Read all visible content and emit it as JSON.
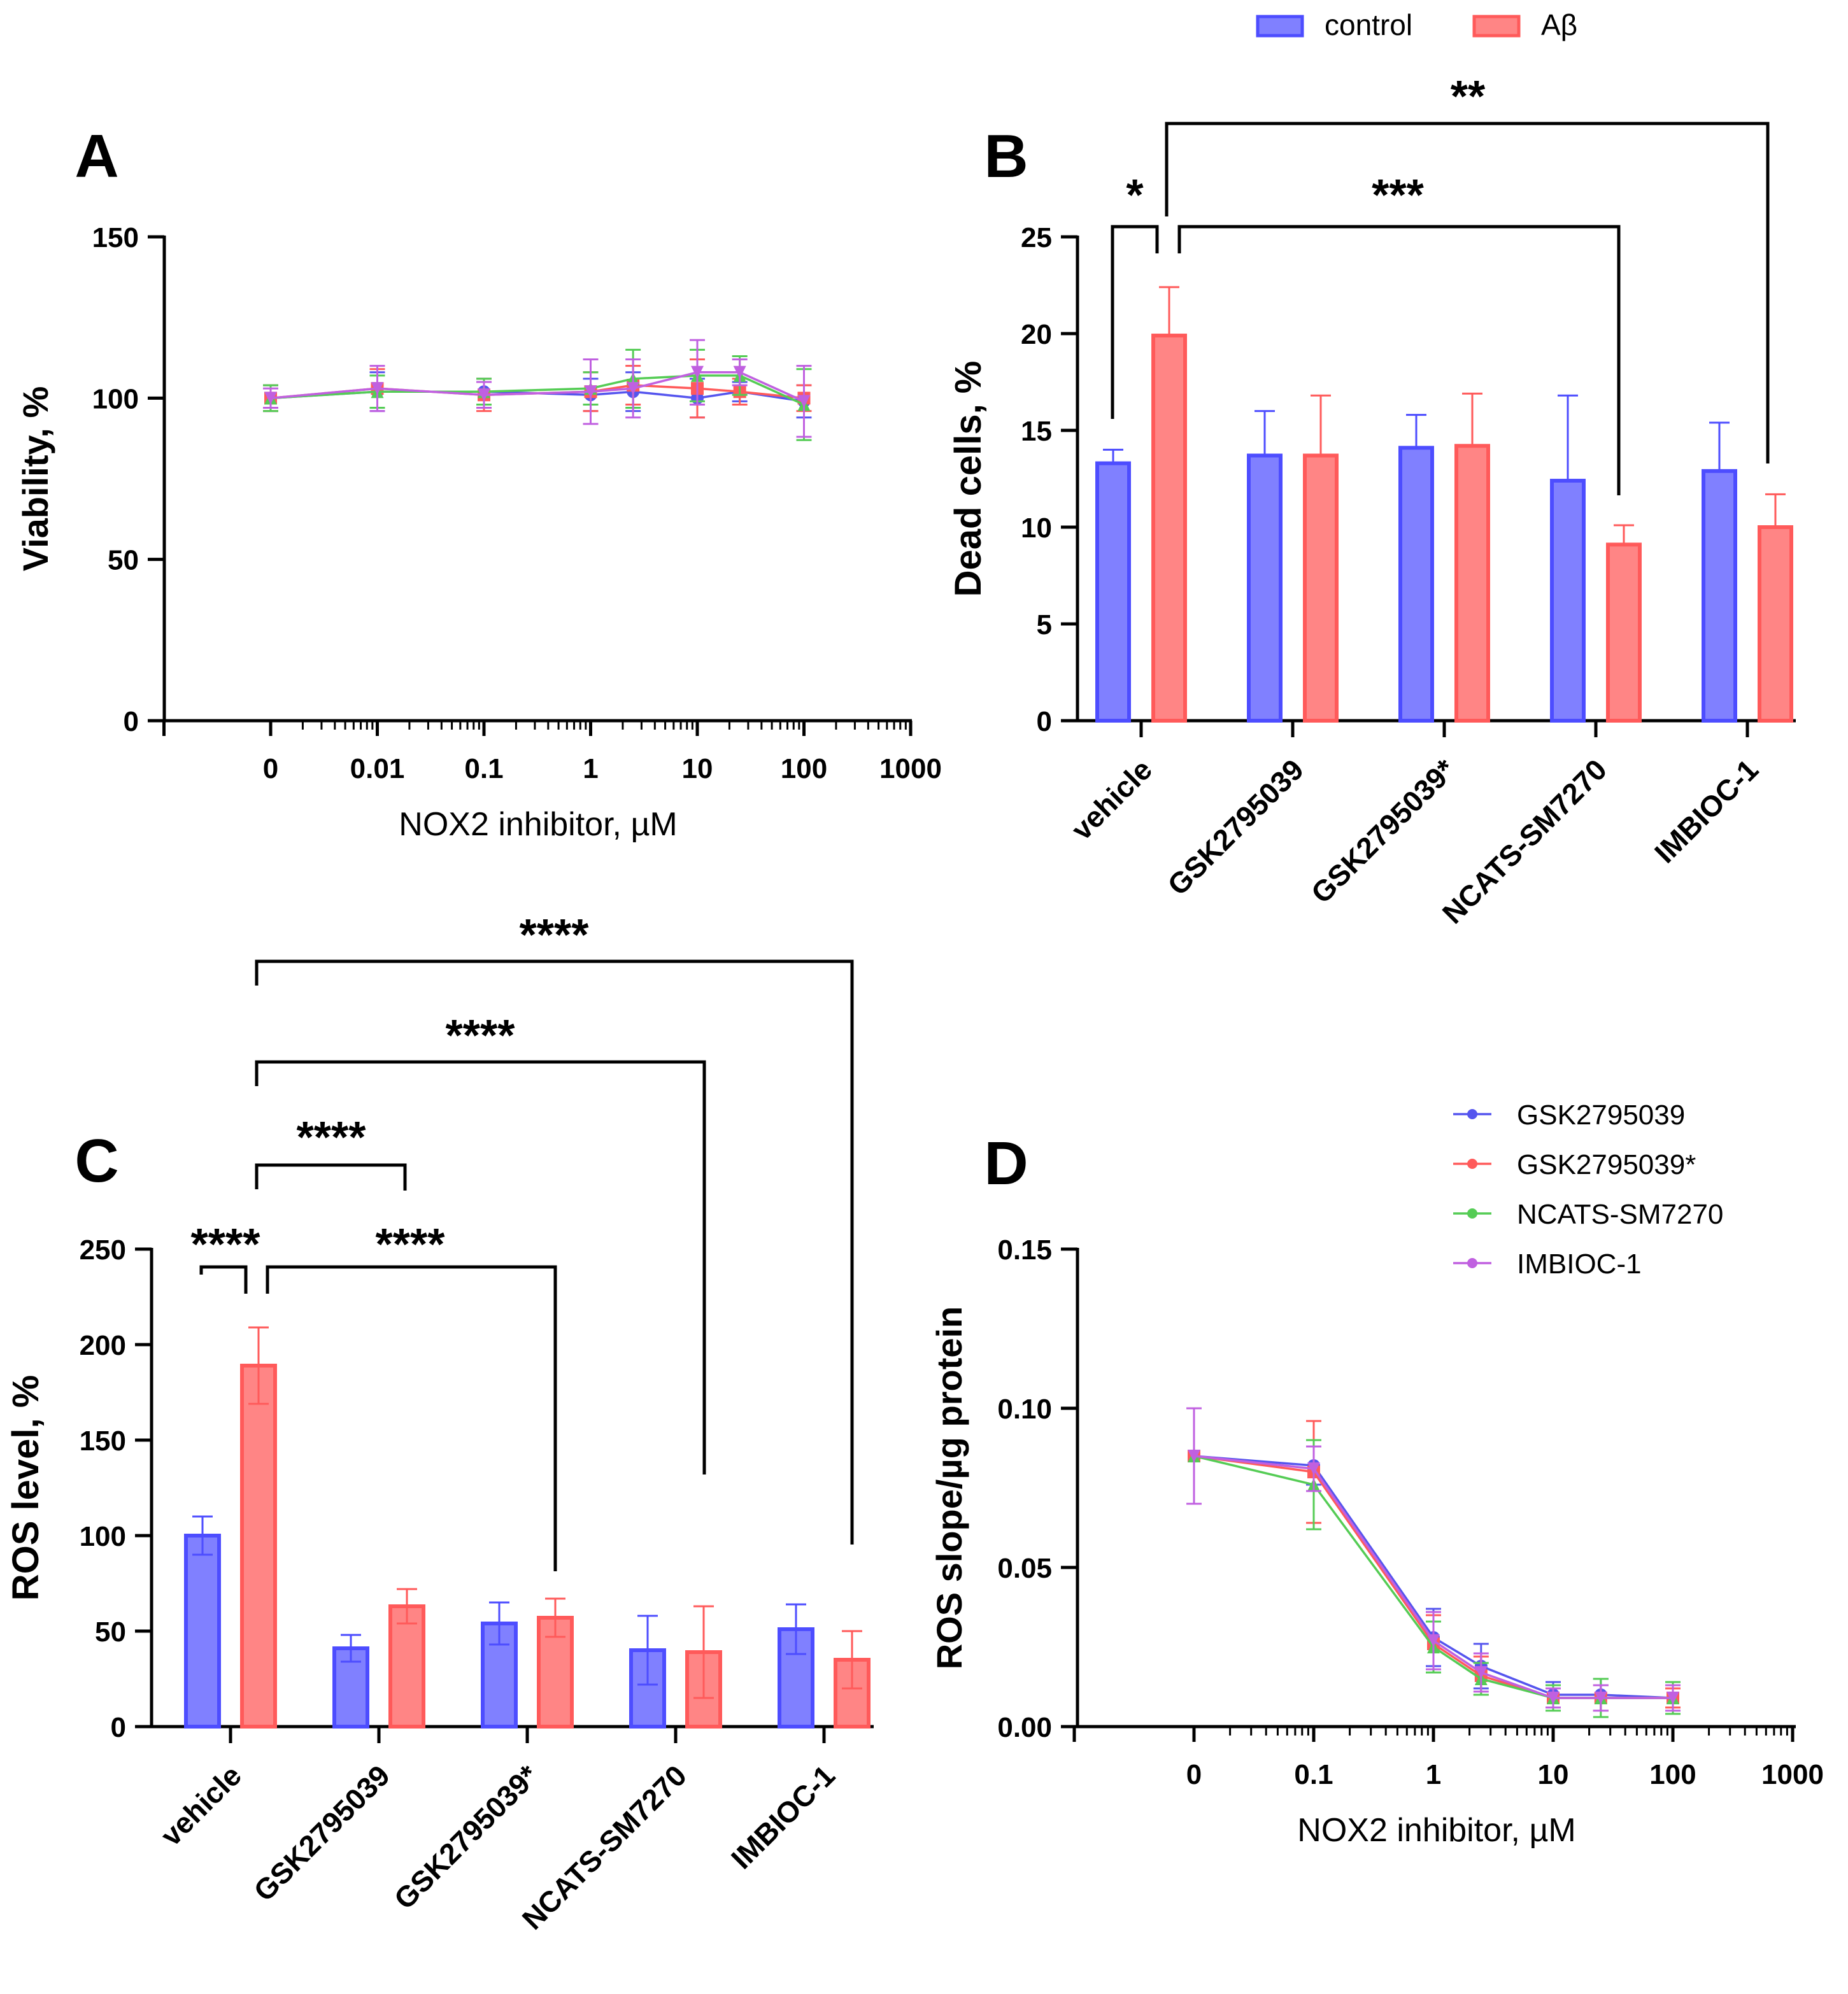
{
  "colors": {
    "control_fill": "#8080ff",
    "control_stroke": "#4d4dff",
    "abeta_fill": "#ff8585",
    "abeta_stroke": "#ff5a5a",
    "series": [
      "#5555ee",
      "#ff5a5a",
      "#55cc55",
      "#c060e0"
    ]
  },
  "legend_top": {
    "items": [
      {
        "label": "control",
        "color": "control"
      },
      {
        "label": "Aβ",
        "color": "abeta"
      }
    ]
  },
  "chart_data": [
    {
      "panel": "A",
      "type": "line",
      "xlabel": "NOX2 inhibitor, µM",
      "ylabel": "Viability, %",
      "ylim": [
        0,
        150
      ],
      "yticks": [
        0,
        50,
        100,
        150
      ],
      "xticks": [
        "0",
        "0.01",
        "0.1",
        "1",
        "10",
        "100",
        "1000"
      ],
      "series": [
        {
          "name": "GSK2795039",
          "points": [
            [
              "0",
              100,
              4
            ],
            [
              "0.01",
              102,
              6
            ],
            [
              "0.1",
              102,
              4
            ],
            [
              "1",
              101,
              5
            ],
            [
              "2.5",
              102,
              6
            ],
            [
              "10",
              100,
              6
            ],
            [
              "25",
              102,
              3
            ],
            [
              "100",
              99,
              5
            ]
          ]
        },
        {
          "name": "GSK2795039*",
          "points": [
            [
              "0",
              100,
              4
            ],
            [
              "0.01",
              103,
              6
            ],
            [
              "0.1",
              101,
              5
            ],
            [
              "1",
              102,
              6
            ],
            [
              "2.5",
              104,
              6
            ],
            [
              "10",
              103,
              9
            ],
            [
              "25",
              102,
              4
            ],
            [
              "100",
              100,
              4
            ]
          ]
        },
        {
          "name": "NCATS-SM7270",
          "points": [
            [
              "0",
              100,
              4
            ],
            [
              "0.01",
              102,
              5
            ],
            [
              "0.1",
              102,
              4
            ],
            [
              "1",
              103,
              5
            ],
            [
              "2.5",
              106,
              9
            ],
            [
              "10",
              107,
              8
            ],
            [
              "25",
              107,
              6
            ],
            [
              "100",
              98,
              11
            ]
          ]
        },
        {
          "name": "IMBIOC-1",
          "points": [
            [
              "0",
              100,
              3
            ],
            [
              "0.01",
              103,
              7
            ],
            [
              "0.1",
              101,
              4
            ],
            [
              "1",
              102,
              10
            ],
            [
              "2.5",
              103,
              9
            ],
            [
              "10",
              108,
              10
            ],
            [
              "25",
              108,
              4
            ],
            [
              "100",
              99,
              11
            ]
          ]
        }
      ]
    },
    {
      "panel": "B",
      "type": "bar",
      "ylabel": "Dead cells, %",
      "ylim": [
        0,
        25
      ],
      "yticks": [
        0,
        5,
        10,
        15,
        20,
        25
      ],
      "categories": [
        "vehicle",
        "GSK2795039",
        "GSK2795039*",
        "NCATS-SM7270",
        "IMBIOC-1"
      ],
      "series": [
        {
          "name": "control",
          "values": [
            13.3,
            13.7,
            14.1,
            12.4,
            12.9
          ],
          "errors": [
            0.7,
            2.3,
            1.7,
            4.4,
            2.5
          ]
        },
        {
          "name": "Aβ",
          "values": [
            19.9,
            13.7,
            14.2,
            9.1,
            10.0
          ],
          "errors": [
            2.5,
            3.1,
            2.7,
            1.0,
            1.7
          ]
        }
      ],
      "significance": [
        {
          "label": "*",
          "from": "vehicle control",
          "to": "vehicle Aβ"
        },
        {
          "label": "***",
          "from": "vehicle Aβ",
          "to": "NCATS-SM7270 Aβ"
        },
        {
          "label": "**",
          "from": "vehicle",
          "to": "IMBIOC-1 Aβ"
        }
      ]
    },
    {
      "panel": "C",
      "type": "bar",
      "ylabel": "ROS level, %",
      "ylim": [
        0,
        250
      ],
      "yticks": [
        0,
        50,
        100,
        150,
        200,
        250
      ],
      "categories": [
        "vehicle",
        "GSK2795039",
        "GSK2795039*",
        "NCATS-SM7270",
        "IMBIOC-1"
      ],
      "series": [
        {
          "name": "control",
          "values": [
            100,
            41,
            54,
            40,
            51
          ],
          "errors": [
            10,
            7,
            11,
            18,
            13
          ]
        },
        {
          "name": "Aβ",
          "values": [
            189,
            63,
            57,
            39,
            35
          ],
          "errors": [
            20,
            9,
            10,
            24,
            15
          ]
        }
      ],
      "significance": [
        {
          "label": "****",
          "from": "vehicle control",
          "to": "vehicle Aβ"
        },
        {
          "label": "****",
          "from": "vehicle Aβ",
          "to": "GSK2795039* Aβ"
        },
        {
          "label": "****",
          "from": "vehicle",
          "to": "GSK2795039"
        },
        {
          "label": "****",
          "from": "vehicle",
          "to": "NCATS-SM7270 Aβ"
        },
        {
          "label": "****",
          "from": "vehicle",
          "to": "IMBIOC-1 Aβ"
        }
      ]
    },
    {
      "panel": "D",
      "type": "line",
      "xlabel": "NOX2 inhibitor, µM",
      "ylabel": "ROS slope/µg protein",
      "ylim": [
        0,
        0.15
      ],
      "yticks": [
        "0.00",
        "0.05",
        "0.10",
        "0.15"
      ],
      "xticks": [
        "0",
        "0.1",
        "1",
        "10",
        "100",
        "1000"
      ],
      "legend": [
        "GSK2795039",
        "GSK2795039*",
        "NCATS-SM7270",
        "IMBIOC-1"
      ],
      "series": [
        {
          "name": "GSK2795039",
          "points": [
            [
              "0",
              0.085,
              0.015
            ],
            [
              "0.1",
              0.082,
              0.006
            ],
            [
              "1",
              0.028,
              0.009
            ],
            [
              "2.5",
              0.019,
              0.007
            ],
            [
              "10",
              0.01,
              0.004
            ],
            [
              "25",
              0.01,
              0.005
            ],
            [
              "100",
              0.009,
              0.004
            ]
          ]
        },
        {
          "name": "GSK2795039*",
          "points": [
            [
              "0",
              0.085,
              0.015
            ],
            [
              "0.1",
              0.08,
              0.016
            ],
            [
              "1",
              0.026,
              0.009
            ],
            [
              "2.5",
              0.016,
              0.006
            ],
            [
              "10",
              0.009,
              0.003
            ],
            [
              "25",
              0.009,
              0.004
            ],
            [
              "100",
              0.009,
              0.003
            ]
          ]
        },
        {
          "name": "NCATS-SM7270",
          "points": [
            [
              "0",
              0.085,
              0.015
            ],
            [
              "0.1",
              0.076,
              0.014
            ],
            [
              "1",
              0.025,
              0.008
            ],
            [
              "2.5",
              0.015,
              0.005
            ],
            [
              "10",
              0.009,
              0.004
            ],
            [
              "25",
              0.009,
              0.006
            ],
            [
              "100",
              0.009,
              0.005
            ]
          ]
        },
        {
          "name": "IMBIOC-1",
          "points": [
            [
              "0",
              0.085,
              0.015
            ],
            [
              "0.1",
              0.081,
              0.007
            ],
            [
              "1",
              0.027,
              0.009
            ],
            [
              "2.5",
              0.017,
              0.006
            ],
            [
              "10",
              0.009,
              0.003
            ],
            [
              "25",
              0.009,
              0.004
            ],
            [
              "100",
              0.009,
              0.004
            ]
          ]
        }
      ]
    }
  ]
}
